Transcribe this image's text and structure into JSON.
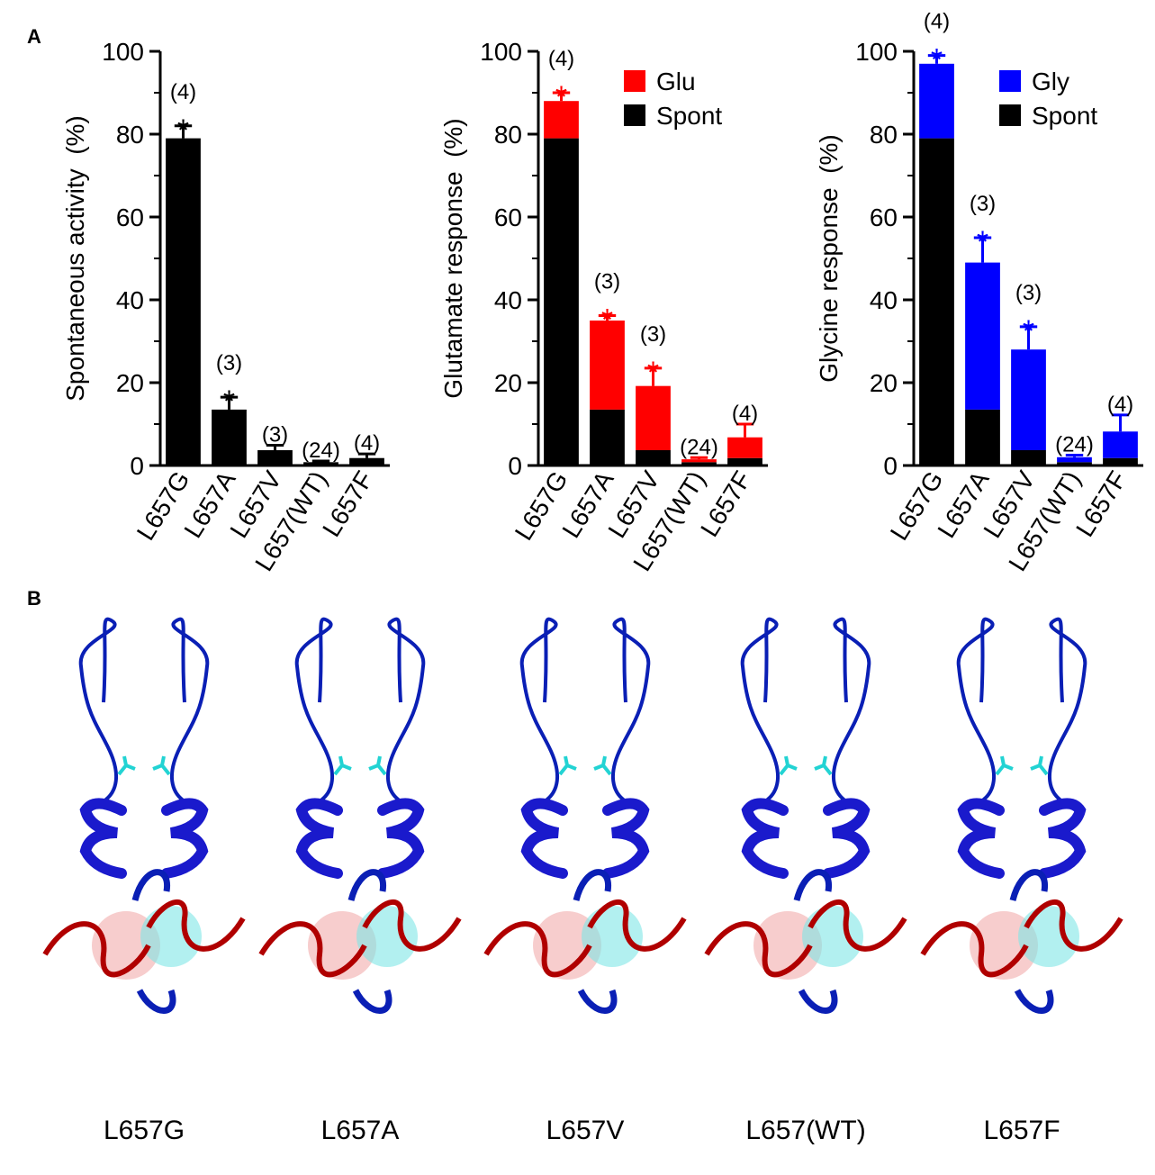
{
  "panel_labels": {
    "a": "A",
    "b": "B"
  },
  "chart_data": [
    {
      "type": "bar",
      "ylabel": "Spontaneous activity  (%)",
      "categories": [
        "L657G",
        "L657A",
        "L657V",
        "L657(WT)",
        "L657F"
      ],
      "values": [
        79,
        13.5,
        3.7,
        0.8,
        1.8
      ],
      "errors": [
        3,
        3,
        1.2,
        0.3,
        1
      ],
      "color": "#000000",
      "annotations": [
        "(4)",
        "(3)",
        "(3)",
        "(24)",
        "(4)"
      ],
      "markers": [
        "*",
        "*",
        null,
        null,
        null
      ],
      "marker_color": "#000000",
      "ylim": [
        0,
        100
      ],
      "yticks": [
        0,
        20,
        40,
        60,
        80,
        100
      ],
      "minor_yticks": [
        10,
        30,
        50,
        70,
        90
      ]
    },
    {
      "type": "stacked_bar",
      "ylabel": "Glutamate response  (%)",
      "categories": [
        "L657G",
        "L657A",
        "L657V",
        "L657(WT)",
        "L657F"
      ],
      "series": [
        {
          "name": "Spont",
          "color": "#000000",
          "values": [
            79,
            13.5,
            3.7,
            0.8,
            1.8
          ]
        },
        {
          "name": "Glu",
          "color": "#ff0000",
          "values": [
            9,
            21.5,
            15.5,
            0.7,
            5
          ],
          "errors": [
            2,
            1.2,
            4.3,
            0.4,
            3.2
          ]
        }
      ],
      "annotations": [
        "(4)",
        "(3)",
        "(3)",
        "(24)",
        "(4)"
      ],
      "markers": [
        "*",
        "*",
        "*",
        null,
        null
      ],
      "marker_color": "#ff0000",
      "legend": "upper right",
      "ylim": [
        0,
        100
      ],
      "yticks": [
        0,
        20,
        40,
        60,
        80,
        100
      ],
      "minor_yticks": [
        10,
        30,
        50,
        70,
        90
      ]
    },
    {
      "type": "stacked_bar",
      "ylabel": "Glycine response  (%)",
      "categories": [
        "L657G",
        "L657A",
        "L657V",
        "L657(WT)",
        "L657F"
      ],
      "series": [
        {
          "name": "Spont",
          "color": "#000000",
          "values": [
            79,
            13.5,
            3.7,
            0.8,
            1.8
          ]
        },
        {
          "name": "Gly",
          "color": "#0000ff",
          "values": [
            18,
            35.5,
            24.3,
            1.2,
            6.4
          ],
          "errors": [
            2,
            6,
            5.5,
            0.5,
            4
          ]
        }
      ],
      "annotations": [
        "(4)",
        "(3)",
        "(3)",
        "(24)",
        "(4)"
      ],
      "markers": [
        "*",
        "*",
        "*",
        null,
        null
      ],
      "marker_color": "#0000ff",
      "legend": "upper right",
      "ylim": [
        0,
        100
      ],
      "yticks": [
        0,
        20,
        40,
        60,
        80,
        100
      ],
      "minor_yticks": [
        10,
        30,
        50,
        70,
        90
      ]
    }
  ],
  "panel_b": {
    "labels": [
      "L657G",
      "L657A",
      "L657V",
      "L657(WT)",
      "L657F"
    ]
  }
}
